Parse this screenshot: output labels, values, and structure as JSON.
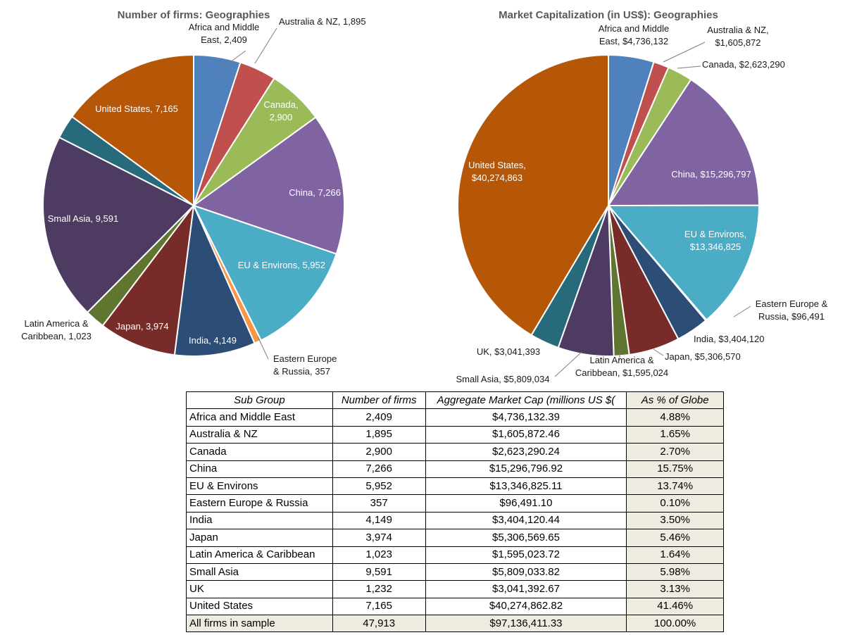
{
  "chart_data": [
    {
      "type": "pie",
      "title": "Number of firms: Geographies",
      "start_angle_deg": 0,
      "slices": [
        {
          "name": "Africa and Middle East",
          "value": 2409,
          "color": "#4f81bd",
          "label": "Africa and Middle East, 2,409"
        },
        {
          "name": "Australia & NZ",
          "value": 1895,
          "color": "#c0504d",
          "label": "Australia & NZ, 1,895"
        },
        {
          "name": "Canada",
          "value": 2900,
          "color": "#9bbb59",
          "label": "Canada, 2,900"
        },
        {
          "name": "China",
          "value": 7266,
          "color": "#8064a2",
          "label": "China, 7,266"
        },
        {
          "name": "EU & Environs",
          "value": 5952,
          "color": "#4bacc6",
          "label": "EU & Environs, 5,952"
        },
        {
          "name": "Eastern Europe & Russia",
          "value": 357,
          "color": "#f79646",
          "label": "Eastern Europe & Russia, 357"
        },
        {
          "name": "India",
          "value": 4149,
          "color": "#2c4d75",
          "label": "India, 4,149"
        },
        {
          "name": "Japan",
          "value": 3974,
          "color": "#772c2a",
          "label": "Japan, 3,974"
        },
        {
          "name": "Latin America & Caribbean",
          "value": 1023,
          "color": "#5f7530",
          "label": "Latin America & Caribbean, 1,023"
        },
        {
          "name": "Small Asia",
          "value": 9591,
          "color": "#4d3b62",
          "label": "Small Asia, 9,591"
        },
        {
          "name": "UK",
          "value": 1232,
          "color": "#276a7c",
          "label": ""
        },
        {
          "name": "United States",
          "value": 7165,
          "color": "#b65708",
          "label": "United States, 7,165"
        }
      ]
    },
    {
      "type": "pie",
      "title": "Market Capitalization (in US$): Geographies",
      "start_angle_deg": 0,
      "slices": [
        {
          "name": "Africa and Middle East",
          "value": 4736132,
          "color": "#4f81bd",
          "label": "Africa and Middle East, $4,736,132"
        },
        {
          "name": "Australia & NZ",
          "value": 1605872,
          "color": "#c0504d",
          "label": "Australia & NZ, $1,605,872"
        },
        {
          "name": "Canada",
          "value": 2623290,
          "color": "#9bbb59",
          "label": "Canada, $2,623,290"
        },
        {
          "name": "China",
          "value": 15296797,
          "color": "#8064a2",
          "label": "China, $15,296,797"
        },
        {
          "name": "EU & Environs",
          "value": 13346825,
          "color": "#4bacc6",
          "label": "EU & Environs, $13,346,825"
        },
        {
          "name": "Eastern Europe & Russia",
          "value": 96491,
          "color": "#f79646",
          "label": "Eastern Europe & Russia, $96,491"
        },
        {
          "name": "India",
          "value": 3404120,
          "color": "#2c4d75",
          "label": "India, $3,404,120"
        },
        {
          "name": "Japan",
          "value": 5306570,
          "color": "#772c2a",
          "label": "Japan, $5,306,570"
        },
        {
          "name": "Latin America & Caribbean",
          "value": 1595024,
          "color": "#5f7530",
          "label": "Latin America & Caribbean, $1,595,024"
        },
        {
          "name": "Small Asia",
          "value": 5809034,
          "color": "#4d3b62",
          "label": "Small Asia, $5,809,034"
        },
        {
          "name": "UK",
          "value": 3041393,
          "color": "#276a7c",
          "label": "UK, $3,041,393"
        },
        {
          "name": "United States",
          "value": 40274863,
          "color": "#b65708",
          "label": "United States, $40,274,863"
        }
      ]
    },
    {
      "type": "table",
      "columns": [
        "Sub Group",
        "Number of firms",
        "Aggregate Market Cap (millions US $(",
        "As % of Globe"
      ],
      "rows": [
        [
          "Africa and Middle East",
          "2,409",
          "$4,736,132.39",
          "4.88%"
        ],
        [
          "Australia & NZ",
          "1,895",
          "$1,605,872.46",
          "1.65%"
        ],
        [
          "Canada",
          "2,900",
          "$2,623,290.24",
          "2.70%"
        ],
        [
          "China",
          "7,266",
          "$15,296,796.92",
          "15.75%"
        ],
        [
          "EU & Environs",
          "5,952",
          "$13,346,825.11",
          "13.74%"
        ],
        [
          "Eastern Europe & Russia",
          "357",
          "$96,491.10",
          "0.10%"
        ],
        [
          "India",
          "4,149",
          "$3,404,120.44",
          "3.50%"
        ],
        [
          "Japan",
          "3,974",
          "$5,306,569.65",
          "5.46%"
        ],
        [
          "Latin America & Caribbean",
          "1,023",
          "$1,595,023.72",
          "1.64%"
        ],
        [
          "Small Asia",
          "9,591",
          "$5,809,033.82",
          "5.98%"
        ],
        [
          "UK",
          "1,232",
          "$3,041,392.67",
          "3.13%"
        ],
        [
          "United States",
          "7,165",
          "$40,274,862.82",
          "41.46%"
        ]
      ],
      "total": [
        "All firms in sample",
        "47,913",
        "$97,136,411.33",
        "100.00%"
      ]
    }
  ]
}
